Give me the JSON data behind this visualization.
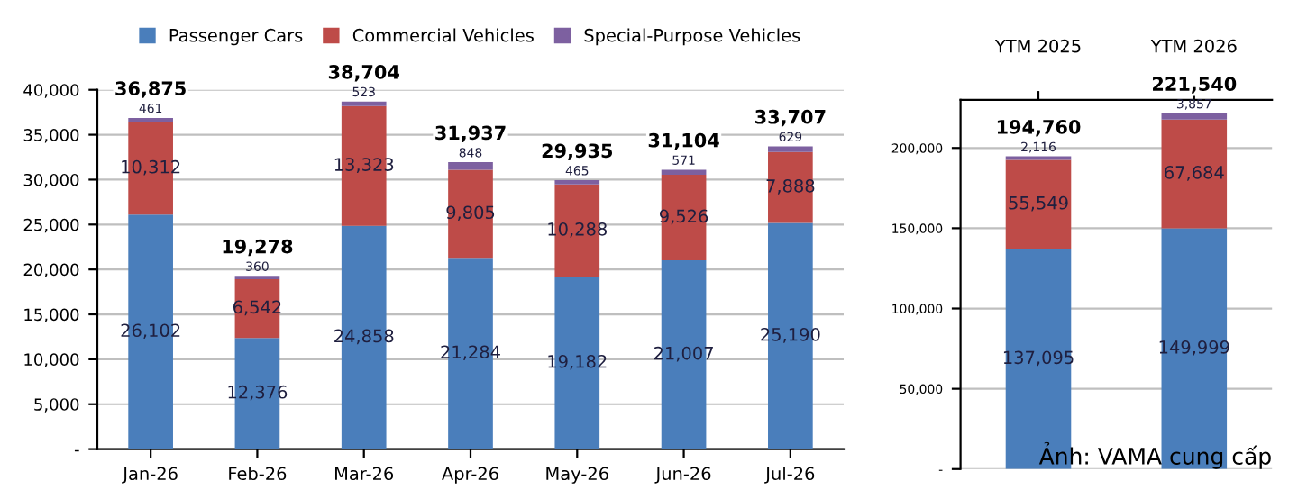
{
  "chart_data": [
    {
      "type": "bar",
      "stacked": true,
      "grid": "y",
      "legend": "top",
      "categories": [
        "Jan-26",
        "Feb-26",
        "Mar-26",
        "Apr-26",
        "May-26",
        "Jun-26",
        "Jul-26"
      ],
      "series": [
        {
          "name": "Passenger Cars",
          "color": "#4a7ebb",
          "values": [
            26102,
            12376,
            24858,
            21284,
            19182,
            21007,
            25190
          ],
          "value_labels": [
            "26,102",
            "12,376",
            "24,858",
            "21,284",
            "19,182",
            "21,007",
            "25,190"
          ]
        },
        {
          "name": "Commercial Vehicles",
          "color": "#be4b48",
          "values": [
            10312,
            6542,
            13323,
            9805,
            10288,
            9526,
            7888
          ],
          "value_labels": [
            "10,312",
            "6,542",
            "13,323",
            "9,805",
            "10,288",
            "9,526",
            "7,888"
          ]
        },
        {
          "name": "Special-Purpose Vehicles",
          "color": "#7d60a0",
          "values": [
            461,
            360,
            523,
            848,
            465,
            571,
            629
          ],
          "value_labels": [
            "461",
            "360",
            "523",
            "848",
            "465",
            "571",
            "629"
          ]
        }
      ],
      "totals": [
        "36,875",
        "19,278",
        "38,704",
        "31,937",
        "29,935",
        "31,104",
        "33,707"
      ],
      "ylim": [
        0,
        40000
      ],
      "yticks": [
        {
          "value": 0,
          "label": "-"
        },
        {
          "value": 5000,
          "label": "5,000"
        },
        {
          "value": 10000,
          "label": "10,000"
        },
        {
          "value": 15000,
          "label": "15,000"
        },
        {
          "value": 20000,
          "label": "20,000"
        },
        {
          "value": 25000,
          "label": "25,000"
        },
        {
          "value": 30000,
          "label": "30,000"
        },
        {
          "value": 35000,
          "label": "35,000"
        },
        {
          "value": 40000,
          "label": "40,000"
        }
      ]
    },
    {
      "type": "bar",
      "stacked": true,
      "grid": "y",
      "categories": [
        "YTM 2025",
        "YTM 2026"
      ],
      "series": [
        {
          "color": "#4a7ebb",
          "values": [
            137095,
            149999
          ],
          "value_labels": [
            "137,095",
            "149,999"
          ]
        },
        {
          "color": "#be4b48",
          "values": [
            55549,
            67684
          ],
          "value_labels": [
            "55,549",
            "67,684"
          ]
        },
        {
          "color": "#7d60a0",
          "values": [
            2116,
            3857
          ],
          "value_labels": [
            "2,116",
            "3,857"
          ]
        }
      ],
      "totals": [
        "194,760",
        "221,540"
      ],
      "ylim": [
        0,
        230000
      ],
      "yticks": [
        {
          "value": 0,
          "label": "-"
        },
        {
          "value": 50000,
          "label": "50,000"
        },
        {
          "value": 100000,
          "label": "100,000"
        },
        {
          "value": 150000,
          "label": "150,000"
        },
        {
          "value": 200000,
          "label": "200,000"
        }
      ],
      "annotations": [
        "Ảnh: VAMA cung cấp"
      ]
    }
  ]
}
